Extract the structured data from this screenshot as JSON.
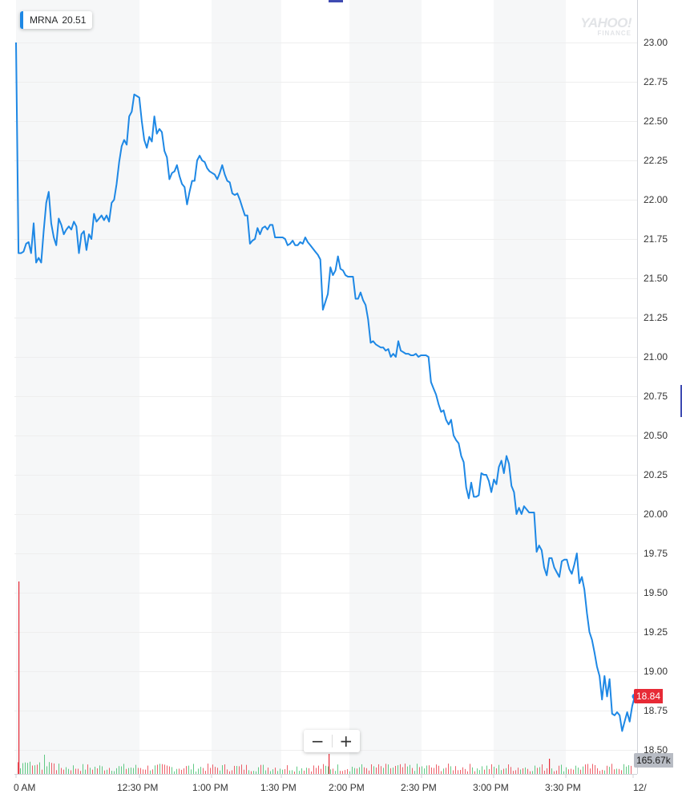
{
  "legend": {
    "symbol": "MRNA",
    "value": "20.51",
    "color": "#1e88e5"
  },
  "watermark": {
    "line1": "YAHOO!",
    "line2": "FINANCE"
  },
  "zoom": {
    "minus": "−",
    "plus": "+"
  },
  "current_price_label": "18.84",
  "volume_label": "165.67k",
  "colors": {
    "line": "#1e88e5",
    "price_tag": "#e72a36",
    "volume_up": "#2eb85c",
    "volume_down": "#e72a36",
    "band": "#f6f7f8",
    "grid": "#eeeeee"
  },
  "chart_data": {
    "type": "line",
    "title": "",
    "xlabel": "",
    "ylabel": "",
    "ylim": [
      18.5,
      23.0
    ],
    "y_ticks": [
      "23.00",
      "22.75",
      "22.50",
      "22.25",
      "22.00",
      "21.75",
      "21.50",
      "21.25",
      "21.00",
      "20.75",
      "20.50",
      "20.25",
      "20.00",
      "19.75",
      "19.50",
      "19.25",
      "19.00",
      "18.75",
      "18.50"
    ],
    "x_ticks": [
      "0 AM",
      "12:30 PM",
      "1:00 PM",
      "1:30 PM",
      "2:00 PM",
      "2:30 PM",
      "3:00 PM",
      "3:30 PM",
      "12/"
    ],
    "grid": true,
    "series": [
      {
        "values": [
          23.0,
          21.66,
          21.66,
          21.67,
          21.72,
          21.73,
          21.66,
          21.85,
          21.6,
          21.63,
          21.6,
          21.8,
          21.98,
          22.05,
          21.85,
          21.76,
          21.71,
          21.88,
          21.84,
          21.78,
          21.81,
          21.83,
          21.81,
          21.86,
          21.83,
          21.66,
          21.78,
          21.8,
          21.68,
          21.78,
          21.75,
          21.91,
          21.86,
          21.88,
          21.9,
          21.87,
          21.9,
          21.86,
          21.98,
          22.0,
          22.1,
          22.24,
          22.34,
          22.38,
          22.35,
          22.53,
          22.56,
          22.67,
          22.66,
          22.65,
          22.5,
          22.38,
          22.33,
          22.4,
          22.37,
          22.53,
          22.42,
          22.45,
          22.43,
          22.31,
          22.27,
          22.13,
          22.17,
          22.18,
          22.22,
          22.15,
          22.1,
          22.08,
          21.97,
          22.05,
          22.12,
          22.12,
          22.25,
          22.28,
          22.25,
          22.24,
          22.2,
          22.18,
          22.17,
          22.16,
          22.13,
          22.17,
          22.22,
          22.16,
          22.12,
          22.11,
          22.04,
          22.03,
          22.04,
          22.0,
          21.95,
          21.9,
          21.9,
          21.72,
          21.74,
          21.75,
          21.82,
          21.78,
          21.82,
          21.83,
          21.81,
          21.84,
          21.84,
          21.76,
          21.76,
          21.76,
          21.76,
          21.75,
          21.71,
          21.72,
          21.74,
          21.71,
          21.71,
          21.73,
          21.72,
          21.76,
          21.73,
          21.71,
          21.69,
          21.67,
          21.65,
          21.62,
          21.3,
          21.35,
          21.4,
          21.57,
          21.52,
          21.55,
          21.64,
          21.56,
          21.55,
          21.52,
          21.51,
          21.51,
          21.51,
          21.37,
          21.37,
          21.41,
          21.36,
          21.33,
          21.24,
          21.09,
          21.1,
          21.08,
          21.07,
          21.06,
          21.06,
          21.04,
          21.05,
          21.0,
          21.02,
          21.0,
          21.1,
          21.04,
          21.03,
          21.02,
          21.02,
          21.01,
          21.01,
          21.02,
          21.0,
          21.01,
          21.01,
          21.01,
          21.0,
          20.84,
          20.8,
          20.76,
          20.7,
          20.65,
          20.66,
          20.6,
          20.57,
          20.6,
          20.5,
          20.47,
          20.45,
          20.37,
          20.33,
          20.17,
          20.1,
          20.2,
          20.11,
          20.11,
          20.12,
          20.26,
          20.25,
          20.25,
          20.21,
          20.14,
          20.22,
          20.19,
          20.3,
          20.34,
          20.26,
          20.37,
          20.32,
          20.18,
          20.14,
          20.0,
          20.04,
          20.0,
          20.05,
          20.03,
          20.01,
          20.01,
          20.01,
          19.76,
          19.8,
          19.77,
          19.66,
          19.61,
          19.72,
          19.72,
          19.66,
          19.63,
          19.6,
          19.7,
          19.71,
          19.71,
          19.65,
          19.62,
          19.68,
          19.75,
          19.56,
          19.6,
          19.52,
          19.37,
          19.25,
          19.2,
          19.12,
          19.03,
          18.97,
          18.82,
          18.97,
          18.84,
          18.95,
          18.73,
          18.72,
          18.74,
          18.72,
          18.62,
          18.68,
          18.74,
          18.68,
          18.78,
          18.84
        ]
      }
    ],
    "volume_series": {
      "spike_index": 0,
      "spike_value": 1.0
    }
  }
}
